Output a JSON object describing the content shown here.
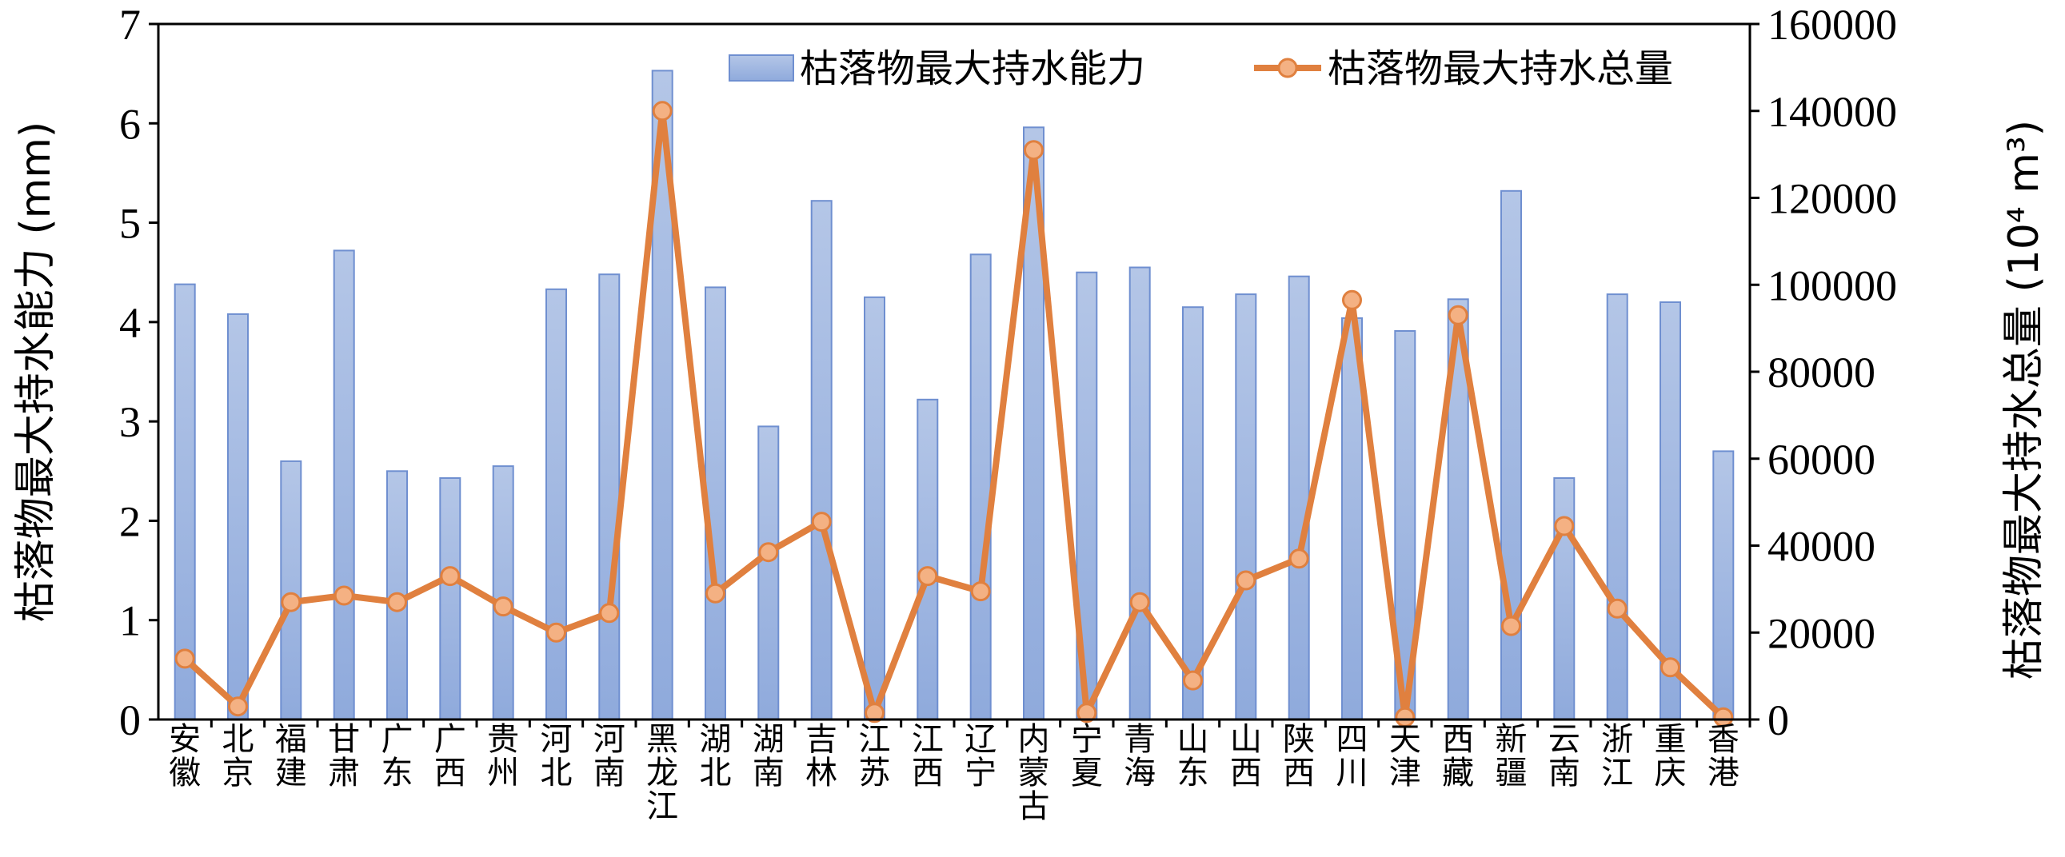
{
  "chart_data": {
    "type": "bar",
    "categories": [
      "安徽",
      "北京",
      "福建",
      "甘肃",
      "广东",
      "广西",
      "贵州",
      "河北",
      "河南",
      "黑龙江",
      "湖北",
      "湖南",
      "吉林",
      "江苏",
      "江西",
      "辽宁",
      "内蒙古",
      "宁夏",
      "青海",
      "山东",
      "山西",
      "陕西",
      "四川",
      "天津",
      "西藏",
      "新疆",
      "云南",
      "浙江",
      "重庆",
      "香港"
    ],
    "series": [
      {
        "name": "枯落物最大持水能力",
        "type": "bar",
        "axis": "left",
        "values": [
          4.38,
          4.08,
          2.6,
          4.72,
          2.5,
          2.43,
          2.55,
          4.33,
          4.48,
          6.53,
          4.35,
          2.95,
          5.22,
          4.25,
          3.22,
          4.68,
          5.96,
          4.5,
          4.55,
          4.15,
          4.28,
          4.46,
          4.04,
          3.91,
          4.23,
          5.32,
          2.43,
          4.28,
          4.2,
          2.7
        ]
      },
      {
        "name": "枯落物最大持水总量",
        "type": "line",
        "axis": "right",
        "values": [
          14000,
          3000,
          27000,
          28500,
          27000,
          33000,
          26000,
          20000,
          24500,
          140000,
          29000,
          38500,
          45500,
          1500,
          33000,
          29500,
          131000,
          1500,
          27000,
          9000,
          32000,
          37000,
          96500,
          500,
          93000,
          21500,
          44500,
          25500,
          12000,
          500
        ]
      }
    ],
    "y_left": {
      "label": "枯落物最大持水能力 (mm)",
      "ticks": [
        "0",
        "1",
        "2",
        "3",
        "4",
        "5",
        "6",
        "7"
      ],
      "ylim": [
        0,
        7
      ]
    },
    "y_right": {
      "label": "枯落物最大持水总量 (10⁴ m³)",
      "ticks": [
        "0",
        "20000",
        "40000",
        "60000",
        "80000",
        "100000",
        "120000",
        "140000",
        "160000"
      ],
      "ylim": [
        0,
        160000
      ]
    },
    "legend_position": "top-right",
    "grid": false,
    "colors": {
      "bar_fill_top": "#b4c6e7",
      "bar_fill_bottom": "#8faadc",
      "bar_stroke": "#6f8fd0",
      "line": "#e0803f",
      "marker_fill": "#f4b183",
      "marker_stroke": "#e0803f"
    }
  }
}
